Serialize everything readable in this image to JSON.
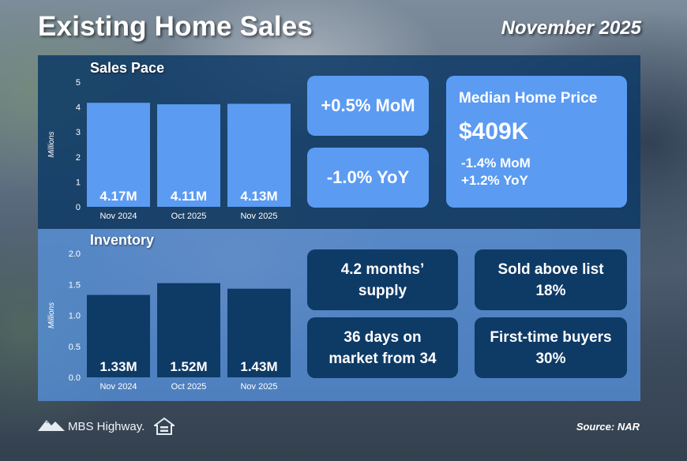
{
  "header": {
    "title": "Existing Home Sales",
    "period": "November 2025"
  },
  "chart_data": [
    {
      "type": "bar",
      "title": "Sales Pace",
      "ylabel": "Millions",
      "categories": [
        "Nov 2024",
        "Oct 2025",
        "Nov 2025"
      ],
      "values": [
        4.17,
        4.11,
        4.13
      ],
      "value_labels": [
        "4.17M",
        "4.11M",
        "4.13M"
      ],
      "ylim": [
        0,
        5
      ],
      "yticks": [
        "0",
        "1",
        "2",
        "3",
        "4",
        "5"
      ],
      "bar_color": "#5b9bf2",
      "grid": false
    },
    {
      "type": "bar",
      "title": "Inventory",
      "ylabel": "Millions",
      "categories": [
        "Nov 2024",
        "Oct 2025",
        "Nov 2025"
      ],
      "values": [
        1.33,
        1.52,
        1.43
      ],
      "value_labels": [
        "1.33M",
        "1.52M",
        "1.43M"
      ],
      "ylim": [
        0,
        2.0
      ],
      "yticks": [
        "0.0",
        "0.5",
        "1.0",
        "1.5",
        "2.0"
      ],
      "bar_color": "#0e3a66",
      "grid": false
    }
  ],
  "sales_stats": {
    "mom": "+0.5% MoM",
    "yoy": "-1.0% YoY"
  },
  "median_price": {
    "label": "Median Home Price",
    "value": "$409K",
    "mom": "-1.4% MoM",
    "yoy": "+1.2% YoY"
  },
  "inventory_stats": {
    "supply_line1": "4.2 months’",
    "supply_line2": "supply",
    "days_line1": "36 days on",
    "days_line2": "market from 34",
    "sold_label": "Sold above list",
    "sold_value": "18%",
    "ftb_label": "First-time buyers",
    "ftb_value": "30%"
  },
  "footer": {
    "logo_text": "MBS Highway.",
    "source": "Source: NAR"
  },
  "colors": {
    "panel_top": "#0e3a66",
    "panel_bottom": "#5896e6",
    "tile_light": "#5b9bf2",
    "tile_dark": "#0e3a66"
  },
  "icons": {
    "logo": "mountain-logo-icon",
    "equal_housing": "equal-housing-icon"
  }
}
